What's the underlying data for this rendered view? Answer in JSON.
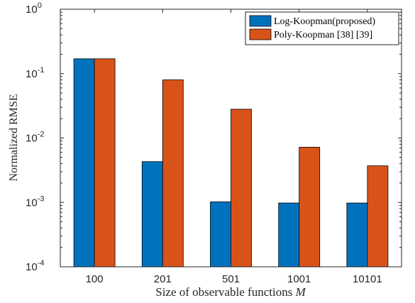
{
  "chart_data": {
    "type": "bar",
    "y_scale": "log",
    "ylim": [
      0.0001,
      1
    ],
    "grid": false,
    "legend_position": "top-right",
    "xlabel": "Size of observable functions",
    "xlabel_var": "M",
    "ylabel": "Normalized RMSE",
    "categories": [
      "100",
      "201",
      "501",
      "1001",
      "10101"
    ],
    "y_ticks": [
      {
        "value": 0.0001,
        "base": "10",
        "exp": "-4"
      },
      {
        "value": 0.001,
        "base": "10",
        "exp": "-3"
      },
      {
        "value": 0.01,
        "base": "10",
        "exp": "-2"
      },
      {
        "value": 0.1,
        "base": "10",
        "exp": "-1"
      },
      {
        "value": 1,
        "base": "10",
        "exp": "0"
      }
    ],
    "series": [
      {
        "name": "Log-Koopman(proposed)",
        "color": "#0072BD",
        "values": [
          0.17,
          0.0043,
          0.00102,
          0.00098,
          0.00098
        ]
      },
      {
        "name": "Poly-Koopman [38] [39]",
        "color": "#D95319",
        "values": [
          0.17,
          0.08,
          0.028,
          0.0072,
          0.0037
        ]
      }
    ]
  }
}
